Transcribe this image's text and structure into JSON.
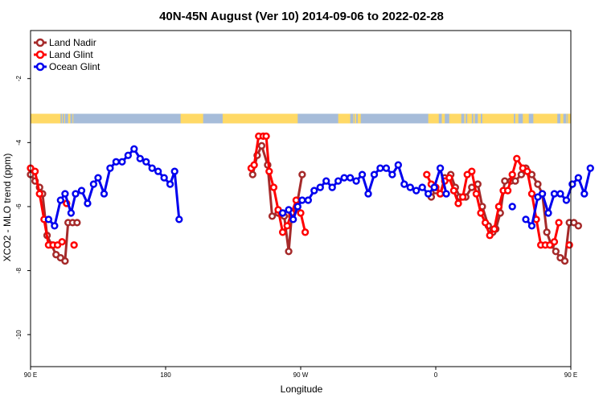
{
  "chart_data": {
    "type": "line",
    "title": "40N-45N August (Ver 10)   2014-09-06 to 2022-02-28",
    "xlabel": "Longitude",
    "ylabel": "XCO2 - MLO trend (ppm)",
    "xlim": [
      90,
      450
    ],
    "ylim": [
      -11,
      -0.5
    ],
    "x_ticks": [
      {
        "value": 90,
        "label": "90 E"
      },
      {
        "value": 180,
        "label": "180"
      },
      {
        "value": 270,
        "label": "90 W"
      },
      {
        "value": 360,
        "label": "0"
      },
      {
        "value": 450,
        "label": "90 E"
      },
      {
        "value": 540,
        "label": "180"
      }
    ],
    "y_ticks": [
      {
        "value": -2,
        "label": "-2"
      },
      {
        "value": -4,
        "label": "-4"
      },
      {
        "value": -6,
        "label": "-6"
      },
      {
        "value": -8,
        "label": "-8"
      },
      {
        "value": -10,
        "label": "-10"
      }
    ],
    "legend_position": "top-left",
    "series": [
      {
        "name": "Land Nadir",
        "color": "#a52a2a",
        "segments": [
          [
            [
              90,
              -5.0
            ],
            [
              93,
              -5.2
            ],
            [
              96,
              -5.4
            ],
            [
              98,
              -5.6
            ],
            [
              101,
              -6.9
            ],
            [
              104,
              -7.2
            ],
            [
              107,
              -7.5
            ],
            [
              110,
              -7.6
            ],
            [
              113,
              -7.7
            ],
            [
              115,
              -6.5
            ],
            [
              118,
              -6.5
            ],
            [
              121,
              -6.5
            ]
          ],
          [
            [
              238,
              -5.0
            ],
            [
              241,
              -4.4
            ],
            [
              244,
              -4.1
            ],
            [
              248,
              -4.7
            ],
            [
              251,
              -6.3
            ],
            [
              255,
              -6.2
            ],
            [
              259,
              -6.3
            ],
            [
              262,
              -7.4
            ],
            [
              264,
              -6.3
            ],
            [
              268,
              -5.8
            ],
            [
              271,
              -5.0
            ]
          ],
          [
            [
              357,
              -5.7
            ],
            [
              360,
              -5.5
            ],
            [
              363,
              -5.6
            ],
            [
              366,
              -5.1
            ],
            [
              370,
              -5.0
            ],
            [
              373,
              -5.4
            ],
            [
              376,
              -5.7
            ],
            [
              380,
              -5.7
            ],
            [
              384,
              -5.4
            ],
            [
              388,
              -5.3
            ],
            [
              391,
              -6.0
            ],
            [
              395,
              -6.6
            ],
            [
              398,
              -6.8
            ],
            [
              400,
              -6.7
            ],
            [
              403,
              -6.2
            ],
            [
              406,
              -5.2
            ],
            [
              410,
              -5.2
            ],
            [
              413,
              -5.2
            ],
            [
              417,
              -5.0
            ],
            [
              420,
              -4.8
            ],
            [
              424,
              -5.0
            ],
            [
              428,
              -5.3
            ],
            [
              431,
              -5.6
            ],
            [
              434,
              -6.8
            ],
            [
              437,
              -7.2
            ],
            [
              440,
              -7.4
            ],
            [
              443,
              -7.6
            ],
            [
              446,
              -7.7
            ],
            [
              449,
              -6.5
            ],
            [
              452,
              -6.5
            ],
            [
              455,
              -6.6
            ]
          ]
        ]
      },
      {
        "name": "Land Glint",
        "color": "#ff0000",
        "segments": [
          [
            [
              90,
              -4.8
            ],
            [
              93,
              -4.9
            ],
            [
              96,
              -5.6
            ],
            [
              99,
              -6.4
            ],
            [
              102,
              -7.2
            ],
            [
              105,
              -7.2
            ],
            [
              108,
              -7.2
            ],
            [
              111,
              -7.1
            ]
          ],
          [
            [
              114,
              -5.9
            ]
          ],
          [
            [
              119,
              -7.2
            ]
          ],
          [
            [
              237,
              -4.8
            ],
            [
              239,
              -4.7
            ],
            [
              242,
              -3.8
            ],
            [
              245,
              -3.8
            ],
            [
              247,
              -3.8
            ],
            [
              249,
              -4.9
            ],
            [
              252,
              -5.4
            ],
            [
              255,
              -6.1
            ],
            [
              258,
              -6.8
            ],
            [
              261,
              -6.6
            ],
            [
              264,
              -6.2
            ],
            [
              267,
              -5.8
            ],
            [
              270,
              -6.2
            ],
            [
              273,
              -6.8
            ]
          ],
          [
            [
              354,
              -5.0
            ],
            [
              357,
              -5.3
            ],
            [
              360,
              -5.4
            ],
            [
              363,
              -5.6
            ],
            [
              366,
              -5.2
            ],
            [
              369,
              -5.1
            ],
            [
              372,
              -5.5
            ],
            [
              375,
              -5.9
            ],
            [
              378,
              -5.7
            ],
            [
              381,
              -5.0
            ],
            [
              384,
              -4.9
            ],
            [
              387,
              -5.6
            ],
            [
              390,
              -6.2
            ],
            [
              393,
              -6.5
            ],
            [
              396,
              -6.9
            ],
            [
              399,
              -6.7
            ],
            [
              402,
              -6.0
            ],
            [
              405,
              -5.5
            ],
            [
              408,
              -5.5
            ],
            [
              411,
              -5.0
            ],
            [
              414,
              -4.5
            ],
            [
              418,
              -4.8
            ],
            [
              421,
              -4.9
            ],
            [
              424,
              -5.6
            ],
            [
              427,
              -6.4
            ],
            [
              430,
              -7.2
            ],
            [
              433,
              -7.2
            ],
            [
              436,
              -7.2
            ],
            [
              439,
              -7.1
            ],
            [
              442,
              -6.5
            ]
          ],
          [
            [
              449,
              -7.2
            ]
          ]
        ]
      },
      {
        "name": "Ocean Glint",
        "color": "#0000ee",
        "segments": [
          [
            [
              102,
              -6.4
            ],
            [
              106,
              -6.6
            ],
            [
              110,
              -5.8
            ],
            [
              113,
              -5.6
            ],
            [
              117,
              -6.2
            ],
            [
              120,
              -5.6
            ],
            [
              124,
              -5.5
            ],
            [
              128,
              -5.9
            ],
            [
              132,
              -5.3
            ],
            [
              135,
              -5.1
            ],
            [
              139,
              -5.6
            ],
            [
              143,
              -4.8
            ],
            [
              147,
              -4.6
            ],
            [
              151,
              -4.6
            ],
            [
              155,
              -4.4
            ],
            [
              159,
              -4.2
            ],
            [
              163,
              -4.5
            ],
            [
              167,
              -4.6
            ],
            [
              171,
              -4.8
            ],
            [
              175,
              -4.9
            ],
            [
              179,
              -5.1
            ],
            [
              183,
              -5.3
            ],
            [
              186,
              -4.9
            ],
            [
              189,
              -6.4
            ]
          ],
          [
            [
              258,
              -6.2
            ],
            [
              262,
              -6.1
            ],
            [
              265,
              -6.4
            ],
            [
              268,
              -6.0
            ],
            [
              271,
              -5.8
            ],
            [
              275,
              -5.8
            ],
            [
              279,
              -5.5
            ],
            [
              283,
              -5.4
            ],
            [
              287,
              -5.2
            ],
            [
              291,
              -5.4
            ],
            [
              295,
              -5.2
            ],
            [
              299,
              -5.1
            ],
            [
              303,
              -5.1
            ],
            [
              307,
              -5.2
            ],
            [
              311,
              -5.0
            ],
            [
              315,
              -5.6
            ],
            [
              319,
              -5.0
            ],
            [
              323,
              -4.8
            ],
            [
              327,
              -4.8
            ],
            [
              331,
              -5.0
            ],
            [
              335,
              -4.7
            ],
            [
              339,
              -5.3
            ],
            [
              343,
              -5.4
            ],
            [
              347,
              -5.5
            ],
            [
              351,
              -5.4
            ],
            [
              355,
              -5.6
            ],
            [
              359,
              -5.4
            ],
            [
              363,
              -4.8
            ],
            [
              367,
              -5.6
            ]
          ],
          [
            [
              411,
              -6.0
            ]
          ],
          [
            [
              420,
              -6.4
            ],
            [
              424,
              -6.6
            ],
            [
              428,
              -5.7
            ],
            [
              431,
              -5.6
            ],
            [
              435,
              -6.2
            ],
            [
              439,
              -5.6
            ],
            [
              443,
              -5.6
            ],
            [
              447,
              -5.8
            ],
            [
              451,
              -5.3
            ],
            [
              455,
              -5.1
            ],
            [
              459,
              -5.6
            ],
            [
              463,
              -4.8
            ]
          ]
        ]
      }
    ],
    "land_sea_bar": {
      "y_bottom": -3.4,
      "y_top": -3.1,
      "land_color": "#ffd966",
      "sea_color": "#a6bcd9",
      "land_ranges": [
        [
          90,
          110
        ],
        [
          111,
          111.5
        ],
        [
          112.5,
          113
        ],
        [
          115,
          116.5
        ],
        [
          118,
          118.5
        ],
        [
          190,
          205
        ],
        [
          218,
          268
        ],
        [
          295,
          303
        ],
        [
          305,
          305.5
        ],
        [
          306,
          307
        ],
        [
          308,
          310
        ],
        [
          355,
          362
        ],
        [
          364,
          366
        ],
        [
          369,
          377
        ],
        [
          379,
          380
        ],
        [
          381,
          384
        ],
        [
          385,
          386
        ],
        [
          388,
          390
        ],
        [
          391,
          412
        ],
        [
          413,
          415
        ],
        [
          418,
          422
        ],
        [
          425,
          441
        ],
        [
          443,
          445
        ],
        [
          447,
          447.5
        ],
        [
          448,
          450
        ]
      ]
    }
  }
}
